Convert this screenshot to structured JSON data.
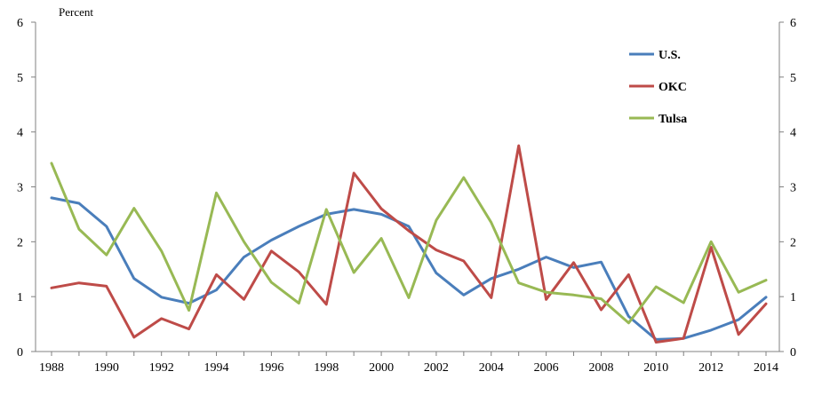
{
  "chart_data": {
    "type": "line",
    "ylabel": "Percent",
    "ylim": [
      0,
      6
    ],
    "yticks": [
      0,
      1,
      2,
      3,
      4,
      5,
      6
    ],
    "xlim": [
      1988,
      2014
    ],
    "xticks": [
      1988,
      1990,
      1992,
      1994,
      1996,
      1998,
      2000,
      2002,
      2004,
      2006,
      2008,
      2010,
      2012,
      2014
    ],
    "grid": false,
    "secondary_y_axis": true,
    "legend_position": "top-right",
    "x": [
      1988,
      1989,
      1990,
      1991,
      1992,
      1993,
      1994,
      1995,
      1996,
      1997,
      1998,
      1999,
      2000,
      2001,
      2002,
      2003,
      2004,
      2005,
      2006,
      2007,
      2008,
      2009,
      2010,
      2011,
      2012,
      2013,
      2014
    ],
    "series": [
      {
        "name": "U.S.",
        "color": "#4a7ebb",
        "values": [
          2.8,
          2.7,
          2.28,
          1.33,
          0.99,
          0.88,
          1.12,
          1.72,
          2.03,
          2.28,
          2.5,
          2.59,
          2.5,
          2.28,
          1.43,
          1.03,
          1.33,
          1.5,
          1.72,
          1.53,
          1.63,
          0.64,
          0.22,
          0.24,
          0.39,
          0.58,
          0.99
        ]
      },
      {
        "name": "OKC",
        "color": "#be4b48",
        "values": [
          1.16,
          1.25,
          1.19,
          0.26,
          0.6,
          0.41,
          1.4,
          0.95,
          1.83,
          1.45,
          0.86,
          3.25,
          2.6,
          2.2,
          1.85,
          1.65,
          0.98,
          3.75,
          0.95,
          1.62,
          0.76,
          1.4,
          0.17,
          0.24,
          1.9,
          0.31,
          0.87
        ]
      },
      {
        "name": "Tulsa",
        "color": "#98b954",
        "values": [
          3.43,
          2.23,
          1.76,
          2.61,
          1.83,
          0.75,
          2.89,
          2.0,
          1.26,
          0.88,
          2.59,
          1.44,
          2.06,
          0.98,
          2.39,
          3.17,
          2.35,
          1.25,
          1.08,
          1.03,
          0.96,
          0.52,
          1.18,
          0.89,
          2.0,
          1.08,
          1.3
        ]
      }
    ]
  }
}
